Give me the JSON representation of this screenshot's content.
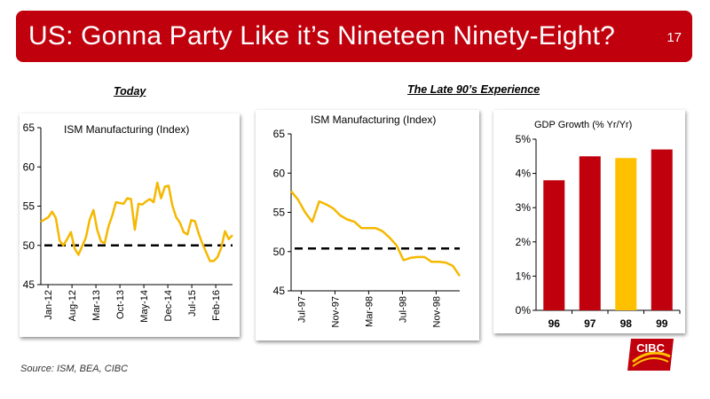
{
  "slide": {
    "title": "US: Gonna Party Like it’s Nineteen Ninety-Eight?",
    "number": "17",
    "section_today": "Today",
    "section_late90s": "The Late 90’s Experience",
    "source": "Source: ISM, BEA, CIBC",
    "logo_text": "CIBC"
  },
  "colors": {
    "banner": "#c0000c",
    "series_line": "#f5b800",
    "reference_line": "#000000",
    "bar_red": "#c0000c",
    "bar_highlight": "#ffc000"
  },
  "chart_data": [
    {
      "type": "line",
      "title": "ISM Manufacturing (Index)",
      "x_tick_labels": [
        "Jan-12",
        "Aug-12",
        "Mar-13",
        "Oct-13",
        "May-14",
        "Dec-14",
        "Jul-15",
        "Feb-16"
      ],
      "ylim": [
        45,
        65
      ],
      "y_ticks": [
        45,
        50,
        55,
        60,
        65
      ],
      "reference_line": 50,
      "series": [
        {
          "values": [
            53.0,
            53.3,
            53.6,
            54.3,
            53.5,
            50.6,
            50.0,
            50.8,
            51.7,
            49.6,
            48.8,
            49.9,
            51.0,
            53.3,
            54.5,
            52.0,
            50.5,
            50.3,
            52.4,
            53.8,
            55.5,
            55.4,
            55.3,
            56.0,
            55.9,
            52.0,
            55.3,
            55.2,
            55.6,
            55.9,
            55.5,
            58.0,
            56.0,
            57.5,
            57.6,
            55.1,
            53.6,
            52.9,
            51.7,
            51.4,
            53.2,
            53.1,
            51.5,
            50.2,
            49.1,
            48.0,
            48.0,
            48.5,
            49.7,
            51.8,
            50.8,
            51.3
          ]
        }
      ]
    },
    {
      "type": "line",
      "title": "ISM Manufacturing (Index)",
      "x_tick_labels": [
        "Jul-97",
        "Nov-97",
        "Mar-98",
        "Jul-98",
        "Nov-98"
      ],
      "ylim": [
        45,
        65
      ],
      "y_ticks": [
        45,
        50,
        55,
        60,
        65
      ],
      "reference_line": 50.4,
      "series": [
        {
          "values": [
            57.7,
            56.6,
            55.0,
            53.8,
            56.4,
            56.0,
            55.5,
            54.6,
            54.1,
            53.8,
            53.0,
            53.0,
            53.0,
            52.6,
            51.8,
            50.8,
            48.9,
            49.2,
            49.3,
            49.3,
            48.7,
            48.7,
            48.6,
            48.2,
            46.9
          ]
        }
      ]
    },
    {
      "type": "bar",
      "title": "GDP Growth (% Yr/Yr)",
      "categories": [
        "96",
        "97",
        "98",
        "99"
      ],
      "values": [
        3.8,
        4.5,
        4.45,
        4.7
      ],
      "highlight_index": 2,
      "ylim": [
        0,
        5
      ],
      "y_tick_labels": [
        "0%",
        "1%",
        "2%",
        "3%",
        "4%",
        "5%"
      ]
    }
  ]
}
